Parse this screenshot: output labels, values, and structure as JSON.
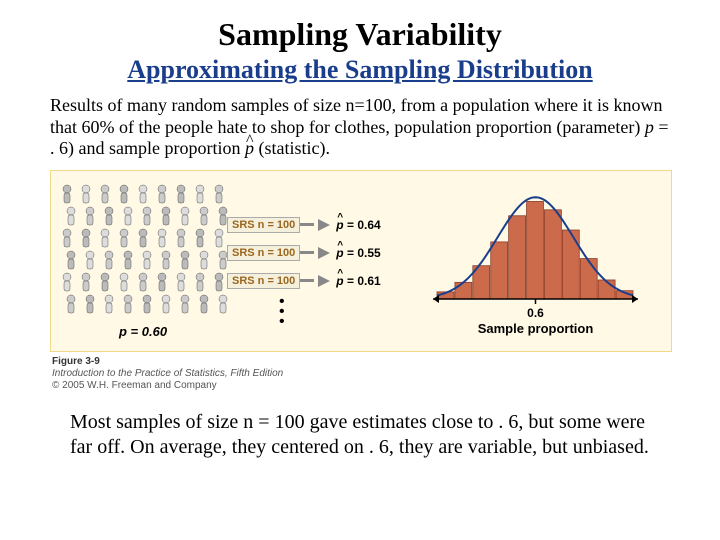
{
  "title": "Sampling Variability",
  "subtitle": "Approximating the Sampling Distribution",
  "subtitle_color": "#1a3e8b",
  "body_text_1": "Results of many random samples of size n=100, from a population where it is known that 60% of the people hate to shop for clothes, population proportion (parameter) ",
  "body_text_p": "p",
  "body_text_2": " = . 6) and sample proportion ",
  "body_text_3": " (statistic).",
  "figure": {
    "bg_color": "#fff9e6",
    "border_color": "#f2d98a",
    "population_label": "p = 0.60",
    "arrows": [
      {
        "label": "SRS n = 100",
        "value": "= 0.64"
      },
      {
        "label": "SRS n = 100",
        "value": "= 0.55"
      },
      {
        "label": "SRS n = 100",
        "value": "= 0.61"
      }
    ],
    "histogram": {
      "type": "histogram",
      "bar_color": "#cc6b4c",
      "bar_border": "#8a3c28",
      "curve_color": "#1a3e8b",
      "axis_color": "#000000",
      "bg": "#fff9e6",
      "bars": [
        6,
        14,
        28,
        48,
        70,
        82,
        75,
        58,
        34,
        16,
        7
      ],
      "xlabel": "Sample proportion",
      "xtick_label": "0.6",
      "label_fontsize": 13,
      "tick_fontsize": 12
    },
    "caption_line1": "Figure 3-9",
    "caption_line2": "Introduction to the Practice of Statistics, Fifth Edition",
    "caption_line3": "© 2005 W.H. Freeman and Company"
  },
  "conclusion": "Most samples of size n = 100 gave estimates close to . 6, but some were far off. On average, they centered on . 6, they are variable, but unbiased."
}
